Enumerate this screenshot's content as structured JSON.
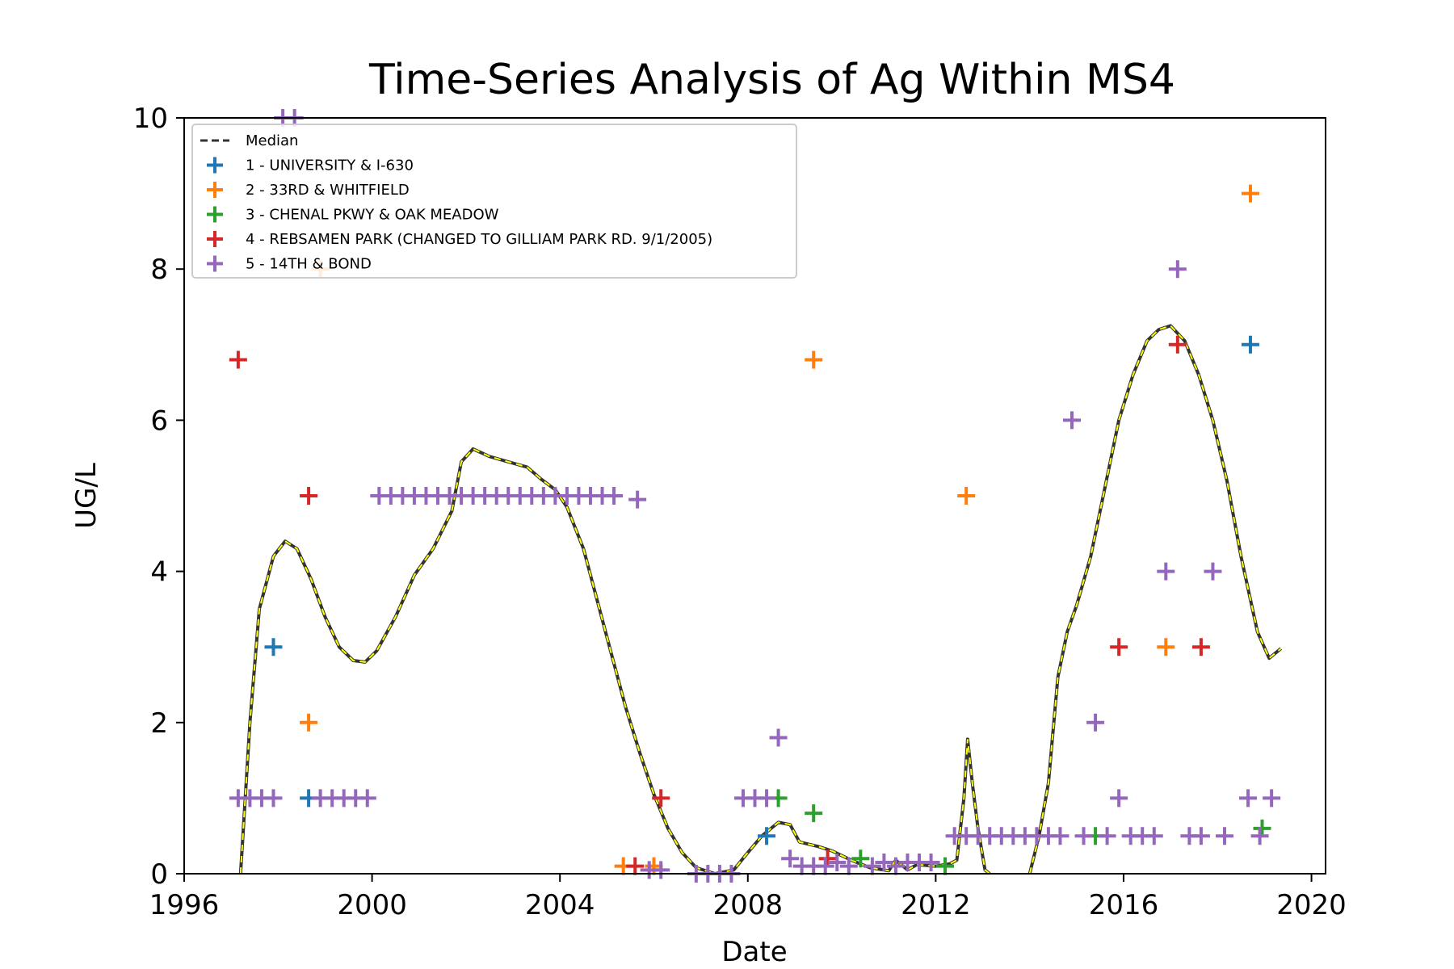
{
  "chart_data": {
    "type": "scatter",
    "title": "Time-Series Analysis of Ag Within MS4",
    "xlabel": "Date",
    "ylabel": "UG/L",
    "xlim": [
      1996,
      2020.3
    ],
    "ylim": [
      0,
      10
    ],
    "x_ticks": [
      "1996",
      "2000",
      "2004",
      "2008",
      "2012",
      "2016",
      "2020"
    ],
    "y_ticks": [
      "0",
      "2",
      "4",
      "6",
      "8",
      "10"
    ],
    "grid": false,
    "legend_position": "top-left",
    "median": {
      "name": "Median",
      "color": "#333333",
      "highlight_color": "#ffff00",
      "points": [
        [
          1997.2,
          0
        ],
        [
          1997.4,
          2
        ],
        [
          1997.6,
          3.5
        ],
        [
          1997.9,
          4.2
        ],
        [
          1998.15,
          4.4
        ],
        [
          1998.4,
          4.3
        ],
        [
          1998.7,
          3.9
        ],
        [
          1999.0,
          3.4
        ],
        [
          1999.3,
          3.0
        ],
        [
          1999.6,
          2.82
        ],
        [
          1999.85,
          2.8
        ],
        [
          2000.1,
          2.95
        ],
        [
          2000.5,
          3.4
        ],
        [
          2000.9,
          3.95
        ],
        [
          2001.3,
          4.3
        ],
        [
          2001.7,
          4.8
        ],
        [
          2001.9,
          5.45
        ],
        [
          2002.15,
          5.62
        ],
        [
          2002.5,
          5.52
        ],
        [
          2002.9,
          5.45
        ],
        [
          2003.3,
          5.38
        ],
        [
          2003.6,
          5.22
        ],
        [
          2003.9,
          5.08
        ],
        [
          2004.15,
          4.85
        ],
        [
          2004.5,
          4.3
        ],
        [
          2004.8,
          3.6
        ],
        [
          2005.1,
          2.9
        ],
        [
          2005.4,
          2.2
        ],
        [
          2005.7,
          1.6
        ],
        [
          2006.0,
          1.05
        ],
        [
          2006.3,
          0.6
        ],
        [
          2006.6,
          0.28
        ],
        [
          2006.9,
          0.08
        ],
        [
          2007.3,
          0
        ],
        [
          2007.7,
          0.05
        ],
        [
          2008.0,
          0.28
        ],
        [
          2008.3,
          0.5
        ],
        [
          2008.65,
          0.68
        ],
        [
          2008.9,
          0.65
        ],
        [
          2009.1,
          0.42
        ],
        [
          2009.5,
          0.36
        ],
        [
          2009.8,
          0.3
        ],
        [
          2010.2,
          0.18
        ],
        [
          2010.6,
          0.08
        ],
        [
          2011.0,
          0.04
        ],
        [
          2011.15,
          0.18
        ],
        [
          2011.4,
          0.05
        ],
        [
          2011.6,
          0.12
        ],
        [
          2012.0,
          0.1
        ],
        [
          2012.3,
          0.13
        ],
        [
          2012.45,
          0.18
        ],
        [
          2012.6,
          1.0
        ],
        [
          2012.68,
          1.78
        ],
        [
          2012.78,
          1.2
        ],
        [
          2012.9,
          0.6
        ],
        [
          2013.05,
          0.05
        ],
        [
          2013.15,
          0
        ]
      ],
      "points_2": [
        [
          2014.0,
          0
        ],
        [
          2014.2,
          0.5
        ],
        [
          2014.4,
          1.2
        ],
        [
          2014.6,
          2.6
        ],
        [
          2014.8,
          3.2
        ],
        [
          2015.0,
          3.55
        ],
        [
          2015.3,
          4.2
        ],
        [
          2015.6,
          5.1
        ],
        [
          2015.9,
          6.0
        ],
        [
          2016.2,
          6.6
        ],
        [
          2016.5,
          7.05
        ],
        [
          2016.75,
          7.2
        ],
        [
          2017.0,
          7.25
        ],
        [
          2017.3,
          7.05
        ],
        [
          2017.6,
          6.6
        ],
        [
          2017.9,
          6.0
        ],
        [
          2018.2,
          5.2
        ],
        [
          2018.5,
          4.2
        ],
        [
          2018.85,
          3.2
        ],
        [
          2019.1,
          2.85
        ],
        [
          2019.35,
          2.98
        ]
      ]
    },
    "series": [
      {
        "name": "1 - UNIVERSITY & I-630",
        "color": "#1f77b4",
        "points": [
          [
            1997.9,
            3
          ],
          [
            1998.65,
            1
          ],
          [
            2008.4,
            0.5
          ],
          [
            2018.7,
            7
          ]
        ]
      },
      {
        "name": "2 - 33RD & WHITFIELD",
        "color": "#ff7f0e",
        "points": [
          [
            1998.9,
            8
          ],
          [
            1998.65,
            2
          ],
          [
            2005.35,
            0.1
          ],
          [
            2006.0,
            0.1
          ],
          [
            2009.4,
            6.8
          ],
          [
            2012.65,
            5
          ],
          [
            2016.9,
            3
          ],
          [
            2018.7,
            9
          ]
        ]
      },
      {
        "name": "3 - CHENAL PKWY & OAK MEADOW",
        "color": "#2ca02c",
        "points": [
          [
            2008.65,
            1
          ],
          [
            2009.4,
            0.8
          ],
          [
            2010.4,
            0.2
          ],
          [
            2012.2,
            0.1
          ],
          [
            2015.4,
            0.5
          ],
          [
            2018.95,
            0.6
          ]
        ]
      },
      {
        "name": "4 - REBSAMEN PARK (CHANGED TO GILLIAM PARK RD. 9/1/2005)",
        "color": "#d62728",
        "points": [
          [
            1997.15,
            6.8
          ],
          [
            1998.65,
            5
          ],
          [
            2005.6,
            0.1
          ],
          [
            2006.15,
            1
          ],
          [
            2009.7,
            0.2
          ],
          [
            2015.9,
            3
          ],
          [
            2017.15,
            7
          ],
          [
            2017.65,
            3
          ]
        ]
      },
      {
        "name": "5 - 14TH & BOND",
        "color": "#9467bd",
        "points": [
          [
            1998.1,
            10
          ],
          [
            1998.35,
            10
          ],
          [
            1997.15,
            1
          ],
          [
            1997.4,
            1
          ],
          [
            1997.65,
            1
          ],
          [
            1997.9,
            1
          ],
          [
            1998.9,
            1
          ],
          [
            1999.15,
            1
          ],
          [
            1999.4,
            1
          ],
          [
            1999.65,
            1
          ],
          [
            1999.9,
            1
          ],
          [
            2000.15,
            5
          ],
          [
            2000.4,
            5
          ],
          [
            2000.65,
            5
          ],
          [
            2000.9,
            5
          ],
          [
            2001.15,
            5
          ],
          [
            2001.4,
            5
          ],
          [
            2001.65,
            5
          ],
          [
            2001.9,
            5
          ],
          [
            2002.15,
            5
          ],
          [
            2002.4,
            5
          ],
          [
            2002.65,
            5
          ],
          [
            2002.9,
            5
          ],
          [
            2003.15,
            5
          ],
          [
            2003.4,
            5
          ],
          [
            2003.65,
            5
          ],
          [
            2003.9,
            5
          ],
          [
            2004.15,
            5
          ],
          [
            2004.4,
            5
          ],
          [
            2004.65,
            5
          ],
          [
            2004.9,
            5
          ],
          [
            2005.15,
            5
          ],
          [
            2005.65,
            4.95
          ],
          [
            2005.9,
            0.05
          ],
          [
            2006.15,
            0.05
          ],
          [
            2006.9,
            0
          ],
          [
            2007.15,
            0
          ],
          [
            2007.4,
            0
          ],
          [
            2007.65,
            0
          ],
          [
            2007.9,
            1
          ],
          [
            2008.15,
            1
          ],
          [
            2008.4,
            1
          ],
          [
            2008.65,
            1.8
          ],
          [
            2008.9,
            0.2
          ],
          [
            2009.15,
            0.1
          ],
          [
            2009.4,
            0.1
          ],
          [
            2009.65,
            0.1
          ],
          [
            2009.9,
            0.15
          ],
          [
            2010.15,
            0.1
          ],
          [
            2010.65,
            0.1
          ],
          [
            2010.9,
            0.15
          ],
          [
            2011.15,
            0.1
          ],
          [
            2011.4,
            0.15
          ],
          [
            2011.65,
            0.15
          ],
          [
            2011.9,
            0.15
          ],
          [
            2012.4,
            0.5
          ],
          [
            2012.65,
            0.5
          ],
          [
            2012.9,
            0.5
          ],
          [
            2013.15,
            0.5
          ],
          [
            2013.4,
            0.5
          ],
          [
            2013.65,
            0.5
          ],
          [
            2013.9,
            0.5
          ],
          [
            2014.15,
            0.5
          ],
          [
            2014.4,
            0.5
          ],
          [
            2014.65,
            0.5
          ],
          [
            2014.9,
            6
          ],
          [
            2015.15,
            0.5
          ],
          [
            2015.4,
            2
          ],
          [
            2015.65,
            0.5
          ],
          [
            2015.9,
            1
          ],
          [
            2016.15,
            0.5
          ],
          [
            2016.4,
            0.5
          ],
          [
            2016.65,
            0.5
          ],
          [
            2016.9,
            4
          ],
          [
            2017.15,
            8
          ],
          [
            2017.4,
            0.5
          ],
          [
            2017.65,
            0.5
          ],
          [
            2017.9,
            4
          ],
          [
            2018.15,
            0.5
          ],
          [
            2018.65,
            1
          ],
          [
            2018.9,
            0.5
          ],
          [
            2019.15,
            1
          ]
        ]
      }
    ]
  }
}
